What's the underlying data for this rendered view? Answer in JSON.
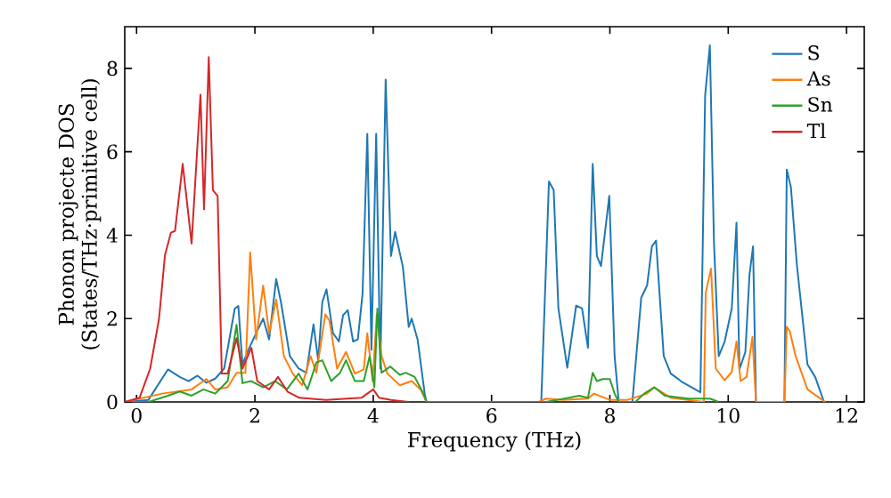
{
  "chart_data": {
    "type": "line",
    "xlabel": "Frequency (THz)",
    "ylabel": "Phonon projecte DOS (States/THz·primitive cell)",
    "xlim": [
      -0.2,
      12.3
    ],
    "ylim": [
      0,
      9
    ],
    "xticks": [
      0,
      2,
      4,
      6,
      8,
      10,
      12
    ],
    "yticks": [
      0,
      2,
      4,
      6,
      8
    ],
    "legend": "top right",
    "grid": false,
    "series": [
      {
        "name": "S",
        "color": "#1f77b4",
        "x": [
          -0.2,
          0.2,
          0.53,
          0.73,
          0.88,
          1.03,
          1.18,
          1.33,
          1.48,
          1.66,
          1.72,
          1.79,
          1.89,
          2.02,
          2.14,
          2.24,
          2.36,
          2.44,
          2.59,
          2.74,
          2.87,
          2.99,
          3.07,
          3.14,
          3.21,
          3.32,
          3.42,
          3.49,
          3.57,
          3.66,
          3.74,
          3.82,
          3.9,
          3.97,
          4.05,
          4.12,
          4.21,
          4.3,
          4.37,
          4.5,
          4.6,
          4.65,
          4.75,
          4.87,
          4.9,
          6.84,
          6.97,
          7.05,
          7.13,
          7.28,
          7.43,
          7.53,
          7.63,
          7.71,
          7.78,
          7.85,
          7.99,
          8.08,
          8.15,
          8.38,
          8.53,
          8.63,
          8.71,
          8.78,
          8.91,
          9.03,
          9.23,
          9.53,
          9.61,
          9.69,
          9.76,
          9.84,
          9.94,
          10.06,
          10.14,
          10.19,
          10.29,
          10.36,
          10.42,
          10.47,
          10.95,
          10.99,
          11.06,
          11.16,
          11.34,
          11.47,
          11.62
        ],
        "values": [
          0,
          0.05,
          0.78,
          0.6,
          0.5,
          0.63,
          0.46,
          0.56,
          0.8,
          2.24,
          2.3,
          0.9,
          1.25,
          1.65,
          2.0,
          1.5,
          2.95,
          2.4,
          1.1,
          0.8,
          0.7,
          1.86,
          1.0,
          2.4,
          2.7,
          1.65,
          1.45,
          2.08,
          2.2,
          1.45,
          1.5,
          2.6,
          6.43,
          1.25,
          6.43,
          0.8,
          7.73,
          3.5,
          4.08,
          3.25,
          1.8,
          2.0,
          1.5,
          0.2,
          0,
          0,
          5.29,
          5.08,
          2.24,
          0.82,
          2.31,
          2.24,
          1.3,
          5.71,
          3.5,
          3.26,
          4.94,
          1.1,
          0,
          0,
          2.5,
          2.8,
          3.73,
          3.87,
          1.1,
          0.68,
          0.47,
          0.23,
          7.35,
          8.55,
          3.8,
          1.1,
          1.45,
          2.24,
          4.3,
          0.78,
          1.2,
          3.05,
          3.73,
          0,
          0,
          5.57,
          5.15,
          3.3,
          0.9,
          0.6,
          0
        ]
      },
      {
        "name": "As",
        "color": "#ff7f0e",
        "x": [
          -0.2,
          0.43,
          0.93,
          1.18,
          1.33,
          1.54,
          1.69,
          1.84,
          1.92,
          2.02,
          2.14,
          2.24,
          2.36,
          2.49,
          2.64,
          2.8,
          2.94,
          3.04,
          3.19,
          3.26,
          3.39,
          3.54,
          3.69,
          3.84,
          3.9,
          3.99,
          4.06,
          4.14,
          4.24,
          4.45,
          4.65,
          4.8,
          4.9,
          6.8,
          6.92,
          7.2,
          7.63,
          7.73,
          8.0,
          8.3,
          8.63,
          8.75,
          9.03,
          9.59,
          9.62,
          9.71,
          9.79,
          9.94,
          10.06,
          10.14,
          10.21,
          10.31,
          10.41,
          10.47,
          10.95,
          10.99,
          11.04,
          11.14,
          11.34,
          11.54,
          11.64
        ],
        "values": [
          0,
          0.2,
          0.3,
          0.55,
          0.3,
          0.35,
          0.7,
          0.7,
          3.59,
          1.5,
          2.79,
          1.65,
          2.45,
          1.1,
          0.68,
          0.4,
          1.1,
          0.7,
          2.1,
          1.95,
          0.8,
          1.2,
          0.68,
          0.78,
          1.65,
          0.5,
          2.1,
          1.1,
          0.68,
          0.4,
          0.5,
          0.3,
          0,
          0,
          0.08,
          0.05,
          0.08,
          0.2,
          0.05,
          0.05,
          0.2,
          0.35,
          0.1,
          0,
          2.62,
          3.2,
          0.8,
          0.52,
          0.72,
          1.45,
          0.5,
          0.6,
          1.56,
          0,
          0,
          1.8,
          1.7,
          1.1,
          0.3,
          0.1,
          0
        ]
      },
      {
        "name": "Sn",
        "color": "#2ca02c",
        "x": [
          -0.2,
          0.2,
          0.53,
          0.73,
          0.93,
          1.13,
          1.33,
          1.54,
          1.69,
          1.79,
          1.94,
          2.14,
          2.34,
          2.54,
          2.74,
          2.89,
          3.04,
          3.14,
          3.29,
          3.44,
          3.54,
          3.69,
          3.84,
          3.94,
          4.02,
          4.07,
          4.14,
          4.29,
          4.45,
          4.55,
          4.7,
          4.85,
          4.9,
          6.92,
          7.23,
          7.48,
          7.63,
          7.71,
          7.78,
          7.88,
          8.0,
          8.08,
          8.15,
          8.43,
          8.58,
          8.75,
          8.93,
          9.33,
          9.69,
          9.84
        ],
        "values": [
          0,
          0,
          0.15,
          0.25,
          0.15,
          0.3,
          0.2,
          0.5,
          1.85,
          0.45,
          0.5,
          0.35,
          0.5,
          0.3,
          0.68,
          0.3,
          0.95,
          1.0,
          0.5,
          0.7,
          1.0,
          0.5,
          0.5,
          1.1,
          0.35,
          2.24,
          0.7,
          0.85,
          0.65,
          0.7,
          0.6,
          0.2,
          0,
          0,
          0.08,
          0.15,
          0.1,
          0.7,
          0.5,
          0.55,
          0.55,
          0.2,
          0,
          0,
          0.2,
          0.35,
          0.15,
          0.08,
          0.08,
          0
        ]
      },
      {
        "name": "Tl",
        "color": "#d62728",
        "x": [
          -0.2,
          0.05,
          0.23,
          0.38,
          0.48,
          0.58,
          0.65,
          0.78,
          0.93,
          1.08,
          1.14,
          1.22,
          1.29,
          1.37,
          1.44,
          1.54,
          1.69,
          1.79,
          1.94,
          2.04,
          2.24,
          2.39,
          2.55,
          2.75,
          3.2,
          3.8,
          4.0,
          4.1,
          4.3,
          4.6
        ],
        "values": [
          0,
          0.1,
          0.8,
          2.0,
          3.52,
          4.06,
          4.1,
          5.71,
          3.8,
          7.37,
          4.62,
          8.27,
          5.08,
          4.94,
          0.68,
          0.68,
          1.53,
          0.8,
          1.3,
          0.5,
          0.3,
          0.6,
          0.25,
          0.1,
          0.05,
          0.1,
          0.3,
          0.1,
          0.05,
          0
        ]
      }
    ]
  }
}
